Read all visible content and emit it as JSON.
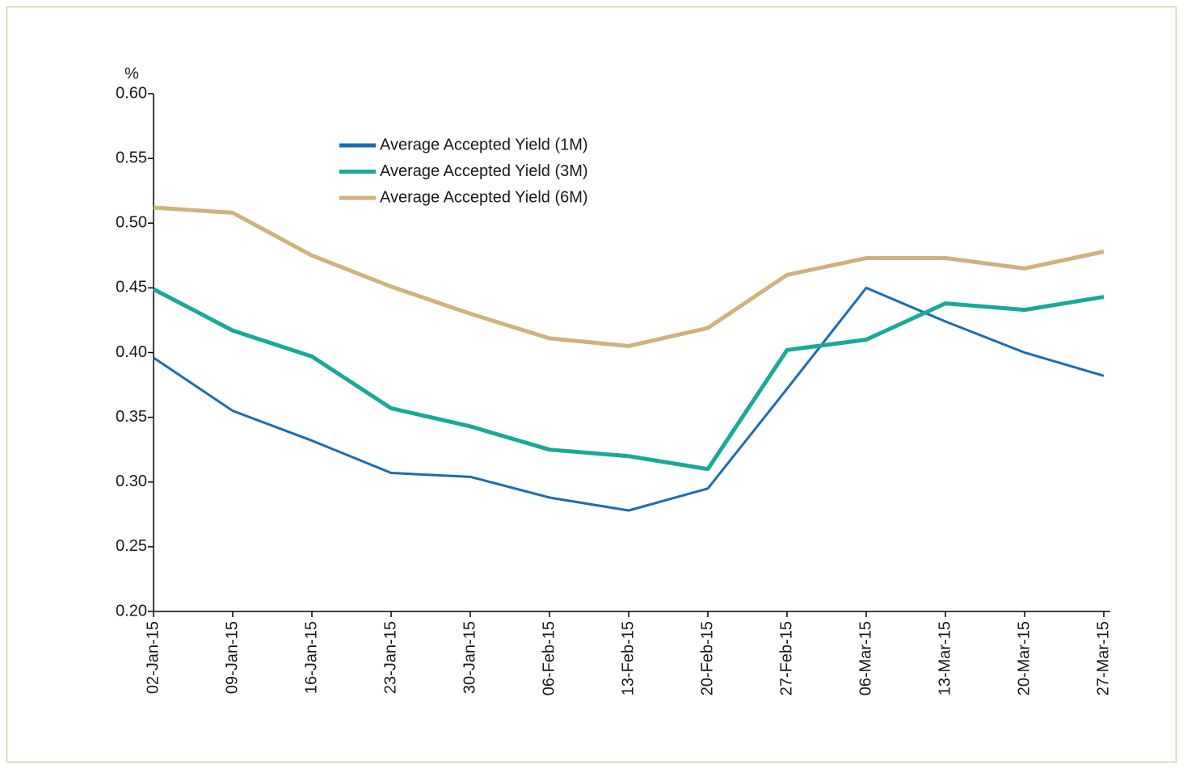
{
  "chart_data": {
    "type": "line",
    "y_label": "%",
    "categories": [
      "02-Jan-15",
      "09-Jan-15",
      "16-Jan-15",
      "23-Jan-15",
      "30-Jan-15",
      "06-Feb-15",
      "13-Feb-15",
      "20-Feb-15",
      "27-Feb-15",
      "06-Mar-15",
      "13-Mar-15",
      "20-Mar-15",
      "27-Mar-15"
    ],
    "series": [
      {
        "name": "Average Accepted Yield (1M)",
        "color": "#1a6db3",
        "values": [
          0.396,
          0.355,
          0.332,
          0.307,
          0.304,
          0.288,
          0.278,
          0.295,
          0.372,
          0.45,
          0.424,
          0.4,
          0.382
        ]
      },
      {
        "name": "Average Accepted Yield (3M)",
        "color": "#1aa898",
        "values": [
          0.449,
          0.417,
          0.397,
          0.357,
          0.343,
          0.325,
          0.32,
          0.31,
          0.402,
          0.41,
          0.438,
          0.433,
          0.443
        ]
      },
      {
        "name": "Average Accepted Yield (6M)",
        "color": "#cfb27c",
        "values": [
          0.512,
          0.508,
          0.475,
          0.451,
          0.43,
          0.411,
          0.405,
          0.419,
          0.46,
          0.473,
          0.473,
          0.465,
          0.478
        ]
      }
    ],
    "ylim": [
      0.2,
      0.6
    ],
    "yticks": [
      {
        "value": 0.2,
        "label": "0.20"
      },
      {
        "value": 0.25,
        "label": "0.25"
      },
      {
        "value": 0.3,
        "label": "0.30"
      },
      {
        "value": 0.35,
        "label": "0.35"
      },
      {
        "value": 0.4,
        "label": "0.40"
      },
      {
        "value": 0.45,
        "label": "0.45"
      },
      {
        "value": 0.5,
        "label": "0.50"
      },
      {
        "value": 0.55,
        "label": "0.55"
      },
      {
        "value": 0.6,
        "label": "0.60"
      }
    ],
    "grid": false
  }
}
